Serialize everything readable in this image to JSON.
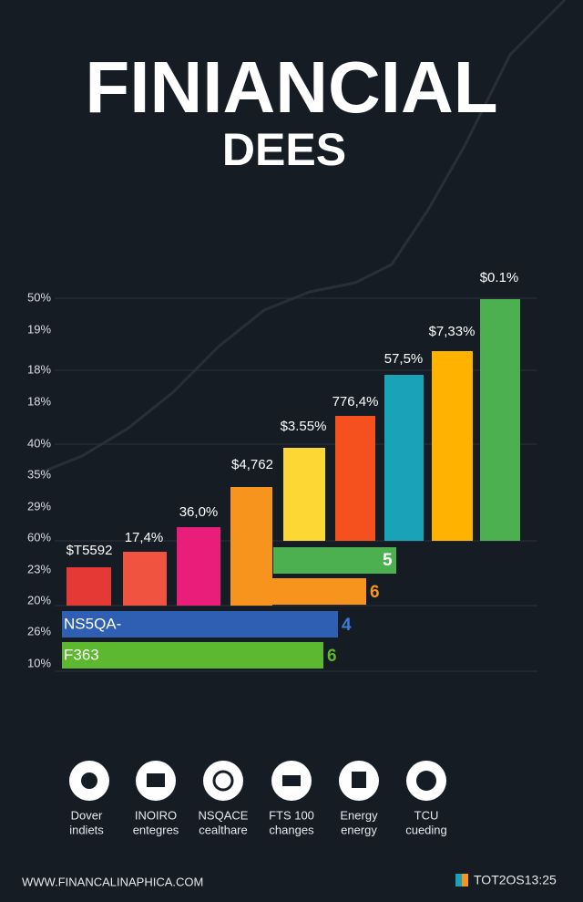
{
  "header": {
    "title": "FINIANCIAL",
    "subtitle": "DEES"
  },
  "axis_labels": [
    "50%",
    "19%",
    "18%",
    "18%",
    "40%",
    "35%",
    "29%",
    "60%",
    "23%",
    "20%",
    "26%",
    "10%"
  ],
  "bar_labels": [
    "$T5592",
    "17,4%",
    "36,0%",
    "$4,762",
    "$3.55%",
    "776,4%",
    "57,5%",
    "$7,33%",
    "$0.1%"
  ],
  "horizontal_bars": [
    {
      "number": "5"
    },
    {
      "number": "6"
    },
    {
      "label": "NS5QA-",
      "number": "4"
    },
    {
      "label": "F363",
      "number": "6"
    }
  ],
  "icons": [
    {
      "line1": "Dover",
      "line2": "indiets"
    },
    {
      "line1": "INOIRO",
      "line2": "entegres"
    },
    {
      "line1": "NSQACE",
      "line2": "cealthare"
    },
    {
      "line1": "FTS 100",
      "line2": "changes"
    },
    {
      "line1": "Energy",
      "line2": "energy"
    },
    {
      "line1": "TCU",
      "line2": "cueding"
    }
  ],
  "footer": {
    "url": "WWW.FINANCALINAPHICA.COM",
    "code": "TOT2OS13:25"
  }
}
